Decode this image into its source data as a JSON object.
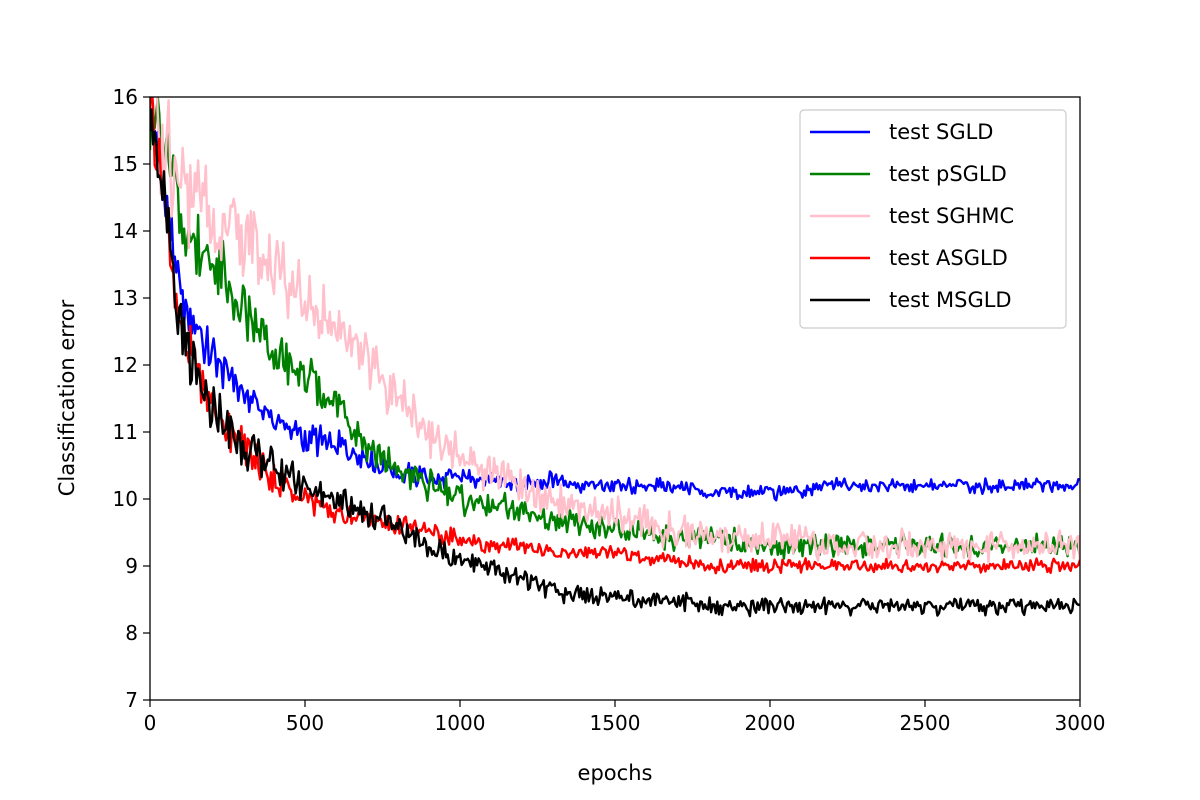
{
  "chart_data": {
    "type": "line",
    "title": "",
    "xlabel": "epochs",
    "ylabel": "Classification error",
    "xlim": [
      0,
      3000
    ],
    "ylim": [
      7,
      16
    ],
    "xticks": [
      "0",
      "500",
      "1000",
      "1500",
      "2000",
      "2500",
      "3000"
    ],
    "yticks": [
      "7",
      "8",
      "9",
      "10",
      "11",
      "12",
      "13",
      "14",
      "15",
      "16"
    ],
    "grid": false,
    "legend_position": "top-right",
    "x": [
      0,
      100,
      200,
      300,
      400,
      500,
      600,
      700,
      800,
      900,
      1000,
      1100,
      1200,
      1300,
      1400,
      1500,
      1600,
      1700,
      1800,
      1900,
      2000,
      2100,
      2200,
      2300,
      2400,
      2500,
      2600,
      2700,
      2800,
      2900,
      3000
    ],
    "series": [
      {
        "name": "test SGLD",
        "color": "#0000ff",
        "values": [
          16,
          13.0,
          12.2,
          11.6,
          11.2,
          10.9,
          10.8,
          10.6,
          10.4,
          10.3,
          10.3,
          10.3,
          10.2,
          10.3,
          10.2,
          10.2,
          10.2,
          10.2,
          10.1,
          10.1,
          10.1,
          10.1,
          10.2,
          10.2,
          10.2,
          10.2,
          10.2,
          10.2,
          10.2,
          10.2,
          10.2
        ]
      },
      {
        "name": "test pSGLD",
        "color": "#008000",
        "values": [
          16,
          14.2,
          13.5,
          12.8,
          12.2,
          11.8,
          11.4,
          10.8,
          10.4,
          10.2,
          10.0,
          9.9,
          9.8,
          9.7,
          9.6,
          9.5,
          9.5,
          9.4,
          9.4,
          9.4,
          9.3,
          9.3,
          9.3,
          9.3,
          9.3,
          9.3,
          9.3,
          9.3,
          9.3,
          9.3,
          9.3
        ]
      },
      {
        "name": "test SGHMC",
        "color": "#ffc0cb",
        "values": [
          16,
          14.8,
          14.2,
          13.8,
          13.4,
          13.0,
          12.5,
          12.0,
          11.5,
          11.0,
          10.6,
          10.4,
          10.2,
          10.0,
          9.9,
          9.8,
          9.6,
          9.5,
          9.5,
          9.4,
          9.4,
          9.4,
          9.3,
          9.3,
          9.3,
          9.3,
          9.3,
          9.3,
          9.3,
          9.3,
          9.3
        ]
      },
      {
        "name": "test ASGLD",
        "color": "#ff0000",
        "values": [
          16,
          12.5,
          11.4,
          10.8,
          10.3,
          10.0,
          9.8,
          9.7,
          9.6,
          9.5,
          9.4,
          9.3,
          9.3,
          9.2,
          9.2,
          9.2,
          9.1,
          9.1,
          9.0,
          9.0,
          9.0,
          9.0,
          9.0,
          9.0,
          9.0,
          9.0,
          9.0,
          9.0,
          9.0,
          9.0,
          9.0
        ]
      },
      {
        "name": "test MSGLD",
        "color": "#000000",
        "values": [
          16,
          12.4,
          11.3,
          10.8,
          10.5,
          10.2,
          10.0,
          9.8,
          9.6,
          9.3,
          9.1,
          9.0,
          8.8,
          8.6,
          8.6,
          8.5,
          8.5,
          8.5,
          8.4,
          8.4,
          8.4,
          8.4,
          8.4,
          8.4,
          8.4,
          8.4,
          8.4,
          8.4,
          8.4,
          8.4,
          8.4
        ]
      }
    ]
  }
}
